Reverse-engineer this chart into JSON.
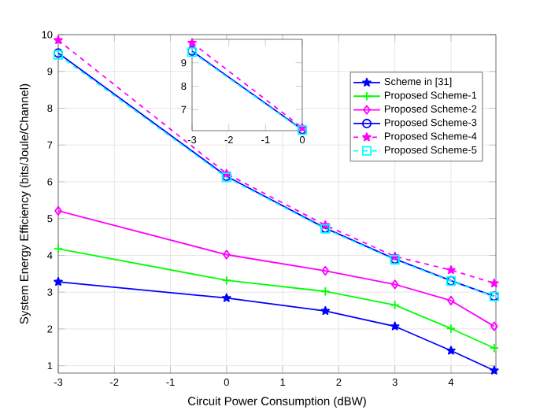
{
  "chart_data": [
    {
      "type": "line",
      "xlabel": "Circuit Power Consumption (dBW)",
      "ylabel": "System Energy Efficiency (bits/Joule/Channel)",
      "x": [
        -3,
        0,
        1.76,
        3,
        4,
        4.77
      ],
      "xlim": [
        -3,
        4.8
      ],
      "ylim": [
        0.8,
        10
      ],
      "xticks": [
        -3,
        -2,
        -1,
        0,
        1,
        2,
        3,
        4
      ],
      "yticks": [
        1,
        2,
        3,
        4,
        5,
        6,
        7,
        8,
        9,
        10
      ],
      "grid": true,
      "legend": "top right",
      "series": [
        {
          "name": "Scheme in [31]",
          "color": "#0000ff",
          "marker": "star",
          "line_style": "solid",
          "values": [
            3.28,
            2.84,
            2.49,
            2.07,
            1.41,
            0.87
          ]
        },
        {
          "name": "Proposed Scheme-1",
          "color": "#00ff00",
          "marker": "cross",
          "line_style": "solid",
          "values": [
            4.18,
            3.32,
            3.02,
            2.65,
            2.01,
            1.48
          ]
        },
        {
          "name": "Proposed Scheme-2",
          "color": "#ff00ff",
          "marker": "diamond",
          "line_style": "solid",
          "values": [
            5.21,
            4.02,
            3.58,
            3.21,
            2.77,
            2.07
          ]
        },
        {
          "name": "Proposed Scheme-3",
          "color": "#0000ff",
          "marker": "circle",
          "line_style": "solid",
          "values": [
            9.5,
            6.15,
            4.74,
            3.9,
            3.31,
            2.89
          ]
        },
        {
          "name": "Proposed Scheme-4",
          "color": "#ff00ff",
          "marker": "star",
          "line_style": "dashed",
          "values": [
            9.85,
            6.22,
            4.82,
            3.97,
            3.6,
            3.24
          ]
        },
        {
          "name": "Proposed Scheme-5",
          "color": "#00ffff",
          "marker": "square",
          "line_style": "dashed",
          "values": [
            9.45,
            6.12,
            4.72,
            3.88,
            3.3,
            2.88
          ]
        }
      ]
    },
    {
      "type": "line",
      "x": [
        -3,
        0
      ],
      "xlim": [
        -3,
        0
      ],
      "ylim": [
        6.1,
        10
      ],
      "xticks": [
        -3,
        -2,
        -1,
        0
      ],
      "yticks": [
        7,
        8,
        9
      ],
      "grid": false,
      "series": [
        {
          "color": "#0000ff",
          "marker": "circle",
          "line_style": "solid",
          "values": [
            9.5,
            6.15
          ]
        },
        {
          "color": "#ff00ff",
          "marker": "star",
          "line_style": "dashed",
          "values": [
            9.85,
            6.22
          ]
        },
        {
          "color": "#00ffff",
          "marker": "square",
          "line_style": "dashed",
          "values": [
            9.45,
            6.12
          ]
        }
      ]
    }
  ]
}
